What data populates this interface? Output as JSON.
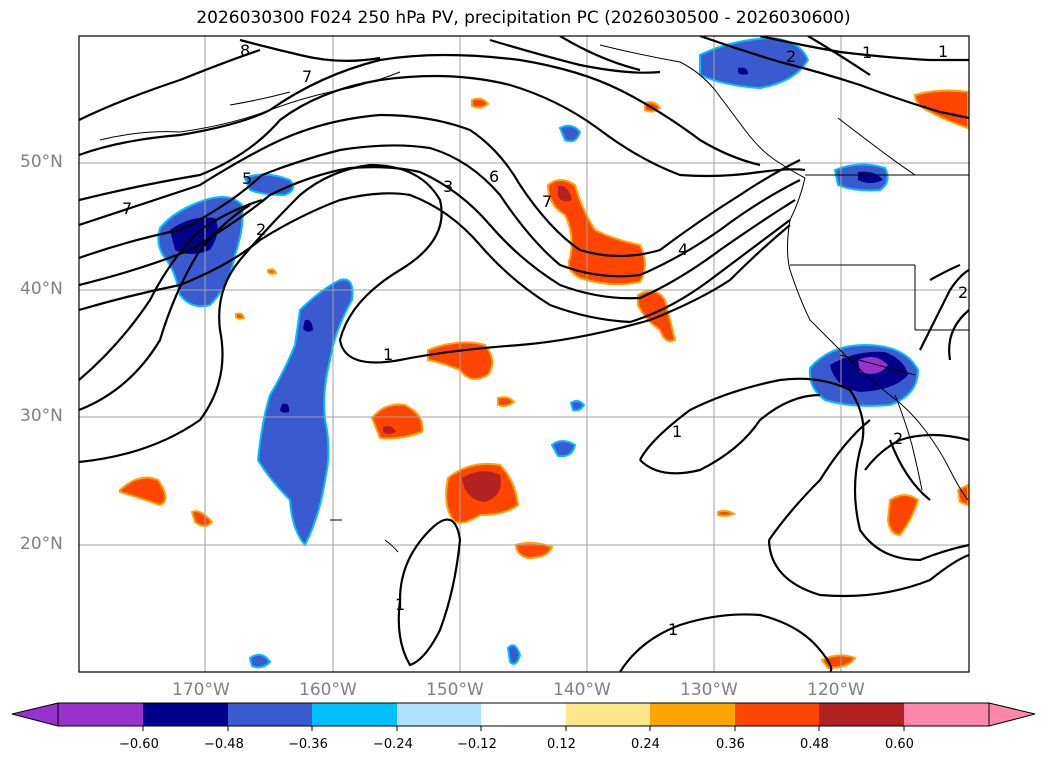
{
  "title": "2026030300 F024 250 hPa PV, precipitation PC (2026030500 - 2026030600)",
  "axes": {
    "lat_labels": [
      "50°N",
      "40°N",
      "30°N",
      "20°N"
    ],
    "lon_labels": [
      "170°W",
      "160°W",
      "150°W",
      "140°W",
      "130°W",
      "120°W"
    ]
  },
  "contour_labels": [
    "8",
    "7",
    "7",
    "5",
    "2",
    "3",
    "6",
    "7",
    "4",
    "1",
    "2",
    "1",
    "1",
    "1",
    "1",
    "2",
    "2",
    "1"
  ],
  "colorbar": {
    "ticks": [
      "−0.60",
      "−0.48",
      "−0.36",
      "−0.24",
      "−0.12",
      "0.12",
      "0.24",
      "0.36",
      "0.48",
      "0.60"
    ],
    "colors": [
      "#9932cc",
      "#00008b",
      "#3a5bd0",
      "#00bfff",
      "#b0e2ff",
      "#ffffff",
      "#ffe88c",
      "#ffa500",
      "#ff4500",
      "#b22222",
      "#ff88aa"
    ]
  }
}
